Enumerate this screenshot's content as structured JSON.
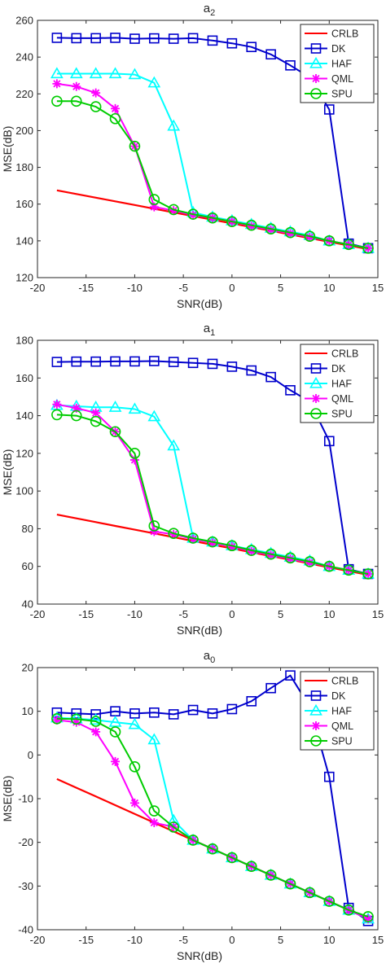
{
  "chart_data": [
    {
      "type": "line",
      "title": "a",
      "title_sub": "2",
      "xlabel": "SNR(dB)",
      "ylabel": "MSE(dB)",
      "xlim": [
        -20,
        15
      ],
      "ylim": [
        120,
        260
      ],
      "xticks": [
        -20,
        -15,
        -10,
        -5,
        0,
        5,
        10,
        15
      ],
      "xtick_labels": [
        "-20",
        "-15",
        "-10",
        "-5",
        "0",
        "5",
        "10",
        "15"
      ],
      "yticks": [
        120,
        140,
        160,
        180,
        200,
        220,
        240,
        260
      ],
      "ytick_labels": [
        "120",
        "140",
        "160",
        "180",
        "200",
        "220",
        "240",
        "260"
      ],
      "grid": false,
      "legend_position": "top-right",
      "series": [
        {
          "name": "CRLB",
          "color": "#ff0000",
          "marker": "none",
          "x": [
            -18,
            -16,
            -14,
            -12,
            -10,
            -8,
            -6,
            -4,
            -2,
            0,
            2,
            4,
            6,
            8,
            10,
            12,
            14
          ],
          "y": [
            167.5,
            165.5,
            163.5,
            161.5,
            159.5,
            157.5,
            155.5,
            153.5,
            151.5,
            149.5,
            147.5,
            145.5,
            143.5,
            141.5,
            139.5,
            137.5,
            135.5
          ]
        },
        {
          "name": "DK",
          "color": "#0000cc",
          "marker": "square",
          "x": [
            -18,
            -16,
            -14,
            -12,
            -10,
            -8,
            -6,
            -4,
            -2,
            0,
            2,
            4,
            6,
            8,
            10,
            12,
            14
          ],
          "y": [
            250.5,
            250.3,
            250.3,
            250.5,
            250,
            250.2,
            250,
            250.3,
            249,
            247.5,
            245.5,
            241.5,
            235.5,
            229,
            211.5,
            138.5,
            136
          ]
        },
        {
          "name": "HAF",
          "color": "#00ffff",
          "marker": "triangle",
          "x": [
            -18,
            -16,
            -14,
            -12,
            -10,
            -8,
            -6,
            -4,
            -2,
            0,
            2,
            4,
            6,
            8,
            10,
            12,
            14
          ],
          "y": [
            231,
            231,
            231,
            231,
            230.5,
            226,
            202.5,
            155.5,
            153,
            151,
            149,
            147,
            145,
            143,
            140,
            138,
            136
          ]
        },
        {
          "name": "QML",
          "color": "#ff00ff",
          "marker": "star",
          "x": [
            -18,
            -16,
            -14,
            -12,
            -10,
            -8,
            -6,
            -4,
            -2,
            0,
            2,
            4,
            6,
            8,
            10,
            12,
            14
          ],
          "y": [
            225.5,
            224,
            220.5,
            212,
            191.5,
            158.5,
            156.5,
            154,
            152.5,
            150.5,
            148,
            146,
            144,
            142,
            140,
            138,
            136
          ]
        },
        {
          "name": "SPU",
          "color": "#00cc00",
          "marker": "circle",
          "x": [
            -18,
            -16,
            -14,
            -12,
            -10,
            -8,
            -6,
            -4,
            -2,
            0,
            2,
            4,
            6,
            8,
            10,
            12,
            14
          ],
          "y": [
            216,
            216,
            213,
            206.5,
            191.5,
            162.5,
            157,
            154.5,
            152.5,
            150.5,
            148.5,
            146.5,
            144.5,
            142.5,
            140,
            138,
            136
          ]
        }
      ]
    },
    {
      "type": "line",
      "title": "a",
      "title_sub": "1",
      "xlabel": "SNR(dB)",
      "ylabel": "MSE(dB)",
      "xlim": [
        -20,
        15
      ],
      "ylim": [
        40,
        180
      ],
      "xticks": [
        -20,
        -15,
        -10,
        -5,
        0,
        5,
        10,
        15
      ],
      "xtick_labels": [
        "-20",
        "-15",
        "-10",
        "-5",
        "0",
        "5",
        "10",
        "15"
      ],
      "yticks": [
        40,
        60,
        80,
        100,
        120,
        140,
        160,
        180
      ],
      "ytick_labels": [
        "40",
        "60",
        "80",
        "100",
        "120",
        "140",
        "160",
        "180"
      ],
      "grid": false,
      "legend_position": "top-right",
      "series": [
        {
          "name": "CRLB",
          "color": "#ff0000",
          "marker": "none",
          "x": [
            -18,
            -16,
            -14,
            -12,
            -10,
            -8,
            -6,
            -4,
            -2,
            0,
            2,
            4,
            6,
            8,
            10,
            12,
            14
          ],
          "y": [
            87.5,
            85.5,
            83.5,
            81.5,
            79.5,
            77.5,
            75.5,
            73.5,
            71.5,
            69.5,
            67.5,
            65.5,
            63.5,
            61.5,
            59.5,
            57.5,
            55.5
          ]
        },
        {
          "name": "DK",
          "color": "#0000cc",
          "marker": "square",
          "x": [
            -18,
            -16,
            -14,
            -12,
            -10,
            -8,
            -6,
            -4,
            -2,
            0,
            2,
            4,
            6,
            8,
            10,
            12,
            14
          ],
          "y": [
            168.5,
            168.7,
            168.7,
            168.8,
            168.8,
            169,
            168.5,
            168,
            167.5,
            166,
            164,
            160.5,
            153.5,
            147.5,
            126.5,
            58.5,
            56
          ]
        },
        {
          "name": "HAF",
          "color": "#00ffff",
          "marker": "triangle",
          "x": [
            -18,
            -16,
            -14,
            -12,
            -10,
            -8,
            -6,
            -4,
            -2,
            0,
            2,
            4,
            6,
            8,
            10,
            12,
            14
          ],
          "y": [
            145.5,
            145,
            144.5,
            144.5,
            143.5,
            139.5,
            124,
            75,
            73,
            71,
            69,
            67,
            65,
            63,
            60,
            58,
            56
          ]
        },
        {
          "name": "QML",
          "color": "#ff00ff",
          "marker": "star",
          "x": [
            -18,
            -16,
            -14,
            -12,
            -10,
            -8,
            -6,
            -4,
            -2,
            0,
            2,
            4,
            6,
            8,
            10,
            12,
            14
          ],
          "y": [
            146,
            144,
            141.5,
            131.5,
            116.5,
            78.5,
            77,
            74.5,
            72.5,
            70.5,
            68,
            66,
            64,
            62,
            60,
            58,
            56
          ]
        },
        {
          "name": "SPU",
          "color": "#00cc00",
          "marker": "circle",
          "x": [
            -18,
            -16,
            -14,
            -12,
            -10,
            -8,
            -6,
            -4,
            -2,
            0,
            2,
            4,
            6,
            8,
            10,
            12,
            14
          ],
          "y": [
            140.5,
            140,
            137,
            131.5,
            120,
            81.5,
            77.5,
            75,
            73,
            71,
            68.5,
            66.5,
            64.5,
            62.5,
            60,
            58,
            56
          ]
        }
      ]
    },
    {
      "type": "line",
      "title": "a",
      "title_sub": "0",
      "xlabel": "SNR(dB)",
      "ylabel": "MSE(dB)",
      "xlim": [
        -20,
        15
      ],
      "ylim": [
        -40,
        20
      ],
      "xticks": [
        -20,
        -15,
        -10,
        -5,
        0,
        5,
        10,
        15
      ],
      "xtick_labels": [
        "-20",
        "-15",
        "-10",
        "-5",
        "0",
        "5",
        "10",
        "15"
      ],
      "yticks": [
        -40,
        -30,
        -20,
        -10,
        0,
        10,
        20
      ],
      "ytick_labels": [
        "-40",
        "-30",
        "-20",
        "-10",
        "0",
        "10",
        "20"
      ],
      "grid": false,
      "legend_position": "top-right",
      "series": [
        {
          "name": "CRLB",
          "color": "#ff0000",
          "marker": "none",
          "x": [
            -18,
            -16,
            -14,
            -12,
            -10,
            -8,
            -6,
            -4,
            -2,
            0,
            2,
            4,
            6,
            8,
            10,
            12,
            14
          ],
          "y": [
            -5.5,
            -7.5,
            -9.5,
            -11.5,
            -13.5,
            -15.5,
            -17.5,
            -19.5,
            -21.5,
            -23.5,
            -25.5,
            -27.5,
            -29.5,
            -31.5,
            -33.5,
            -35.5,
            -37.5
          ]
        },
        {
          "name": "DK",
          "color": "#0000cc",
          "marker": "square",
          "x": [
            -18,
            -16,
            -14,
            -12,
            -10,
            -8,
            -6,
            -4,
            -2,
            0,
            2,
            4,
            6,
            8,
            10,
            12,
            14
          ],
          "y": [
            9.7,
            9.5,
            9.3,
            10,
            9.5,
            9.7,
            9.3,
            10.3,
            9.5,
            10.5,
            12.3,
            15.3,
            18.2,
            11,
            -5,
            -35,
            -38
          ]
        },
        {
          "name": "HAF",
          "color": "#00ffff",
          "marker": "triangle",
          "x": [
            -18,
            -16,
            -14,
            -12,
            -10,
            -8,
            -6,
            -4,
            -2,
            0,
            2,
            4,
            6,
            8,
            10,
            12,
            14
          ],
          "y": [
            8.5,
            8.3,
            8,
            7.5,
            7,
            3.5,
            -15,
            -19.5,
            -21.5,
            -23.5,
            -25.5,
            -27.5,
            -29.5,
            -31.5,
            -33.5,
            -35.5,
            -37.5
          ]
        },
        {
          "name": "QML",
          "color": "#ff00ff",
          "marker": "star",
          "x": [
            -18,
            -16,
            -14,
            -12,
            -10,
            -8,
            -6,
            -4,
            -2,
            0,
            2,
            4,
            6,
            8,
            10,
            12,
            14
          ],
          "y": [
            8,
            7.5,
            5.3,
            -1.5,
            -11,
            -15.5,
            -16.5,
            -19.5,
            -21.5,
            -23.5,
            -25.5,
            -27.5,
            -29.5,
            -31.5,
            -33.5,
            -35.5,
            -37.5
          ]
        },
        {
          "name": "SPU",
          "color": "#00cc00",
          "marker": "circle",
          "x": [
            -18,
            -16,
            -14,
            -12,
            -10,
            -8,
            -6,
            -4,
            -2,
            0,
            2,
            4,
            6,
            8,
            10,
            12,
            14
          ],
          "y": [
            8.3,
            8.2,
            7.7,
            5.3,
            -2.7,
            -12.8,
            -16.5,
            -19.5,
            -21.5,
            -23.5,
            -25.5,
            -27.5,
            -29.5,
            -31.5,
            -33.5,
            -35.5,
            -37
          ]
        }
      ]
    }
  ]
}
